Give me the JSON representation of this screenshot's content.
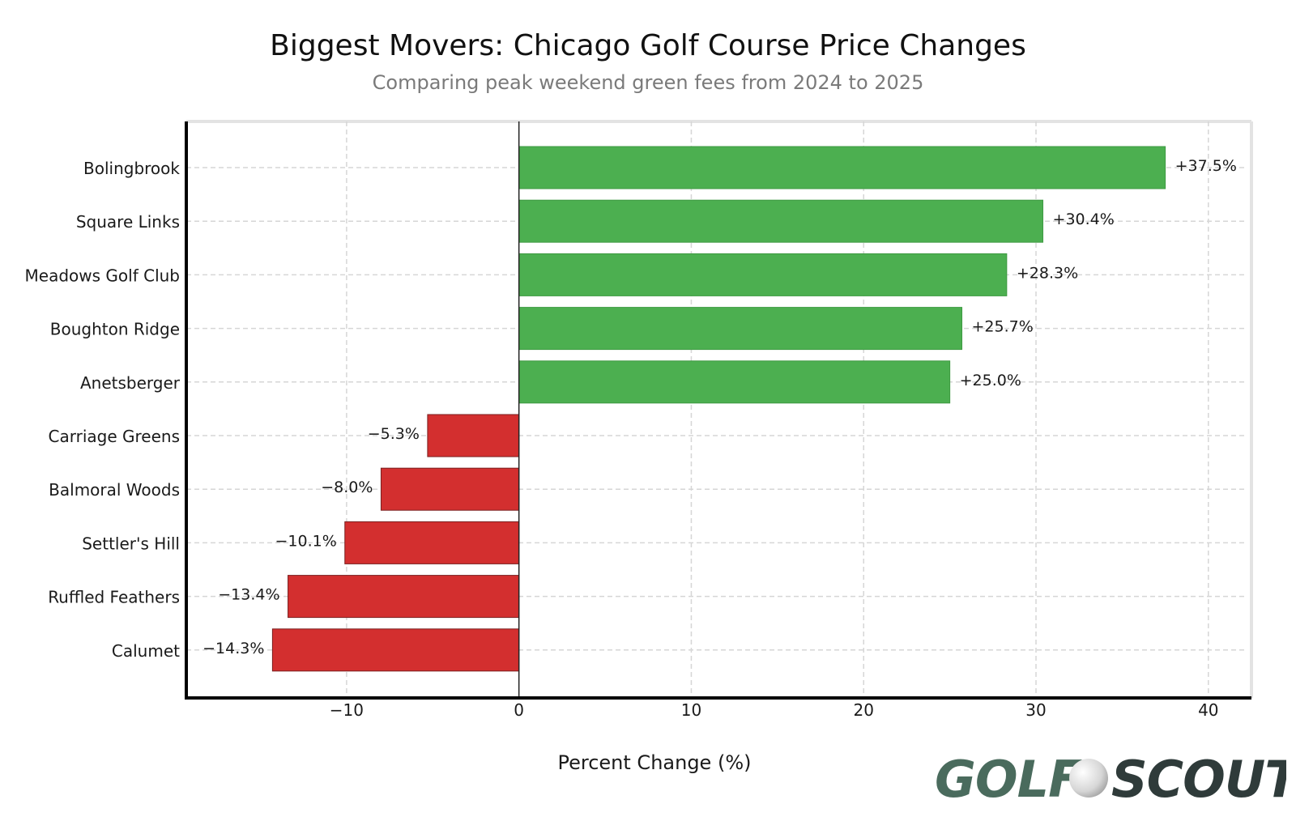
{
  "chart_data": {
    "type": "bar",
    "orientation": "horizontal",
    "title": "Biggest Movers: Chicago Golf Course Price Changes",
    "subtitle": "Comparing peak weekend green fees from 2024 to 2025",
    "xlabel": "Percent Change (%)",
    "ylabel": "",
    "xlim": [
      -19.3,
      42.5
    ],
    "xticks": [
      -10,
      0,
      10,
      20,
      30,
      40
    ],
    "xtick_labels": [
      "−10",
      "0",
      "10",
      "20",
      "30",
      "40"
    ],
    "grid": true,
    "categories": [
      "Bolingbrook",
      "Square Links",
      "Meadows Golf Club",
      "Boughton Ridge",
      "Anetsberger",
      "Carriage Greens",
      "Balmoral Woods",
      "Settler's Hill",
      "Ruffled Feathers",
      "Calumet"
    ],
    "values": [
      37.5,
      30.4,
      28.3,
      25.7,
      25.0,
      -5.3,
      -8.0,
      -10.1,
      -13.4,
      -14.3
    ],
    "data_labels": [
      "+37.5%",
      "+30.4%",
      "+28.3%",
      "+25.7%",
      "+25.0%",
      "−5.3%",
      "−8.0%",
      "−10.1%",
      "−13.4%",
      "−14.3%"
    ],
    "colors": {
      "positive": "#4caf50",
      "negative": "#d32f2f"
    }
  },
  "logo": {
    "word1": "GOLF",
    "word2": "SCOUT",
    "color1": "#4a6b5d",
    "color2": "#2f3b3a"
  }
}
